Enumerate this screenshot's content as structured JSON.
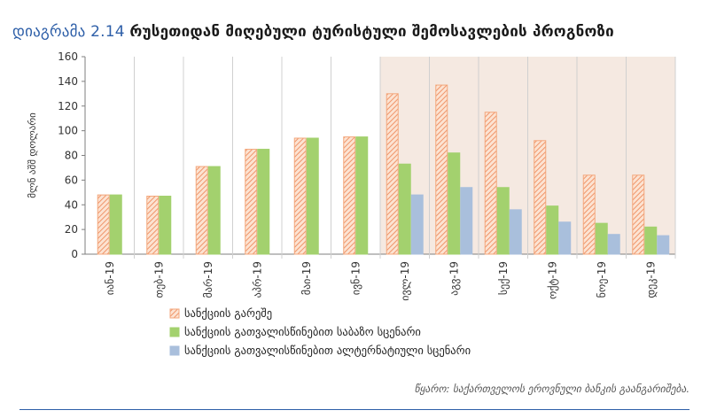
{
  "figure": {
    "label": "დიაგრამა 2.14",
    "title": "რუსეთიდან მიღებული ტურისტული შემოსავლების პროგნოზი",
    "source": "წყარო: საქართველოს ეროვნული ბანკის გაანგარიშება."
  },
  "chart_data": {
    "type": "bar",
    "title": "რუსეთიდან მიღებული ტურისტული შემოსავლების პროგნოზი",
    "xlabel": "",
    "ylabel": "მლნ აშშ დოლარი",
    "ylim": [
      0,
      160
    ],
    "yticks": [
      0,
      20,
      40,
      60,
      80,
      100,
      120,
      140,
      160
    ],
    "grid": false,
    "legend_position": "bottom-left",
    "shaded_region": {
      "from_category": "ივლ-19",
      "to_category": "დეკ-19",
      "color": "#f5e9e1"
    },
    "categories": [
      "იან-19",
      "თებ-19",
      "მარ-19",
      "აპრ-19",
      "მაი-19",
      "ივნ-19",
      "ივლ-19",
      "აგვ-19",
      "სექ-19",
      "ოქტ-19",
      "ნოე-19",
      "დეკ-19"
    ],
    "series": [
      {
        "name": "სანქციის გარეშე",
        "color": "#f3a77c",
        "pattern": "hatch",
        "values": [
          48,
          47,
          71,
          85,
          94,
          95,
          130,
          137,
          115,
          92,
          64,
          64
        ]
      },
      {
        "name": "სანქციის გათვალისწინებით საბაზო სცენარი",
        "color": "#a3d16e",
        "pattern": "solid",
        "values": [
          48,
          47,
          71,
          85,
          94,
          95,
          73,
          82,
          54,
          39,
          25,
          22
        ]
      },
      {
        "name": "სანქციის გათვალისწინებით ალტერნატიული სცენარი",
        "color": "#a9bfdc",
        "pattern": "solid",
        "values": [
          null,
          null,
          null,
          null,
          null,
          null,
          48,
          54,
          36,
          26,
          16,
          15
        ]
      }
    ]
  }
}
